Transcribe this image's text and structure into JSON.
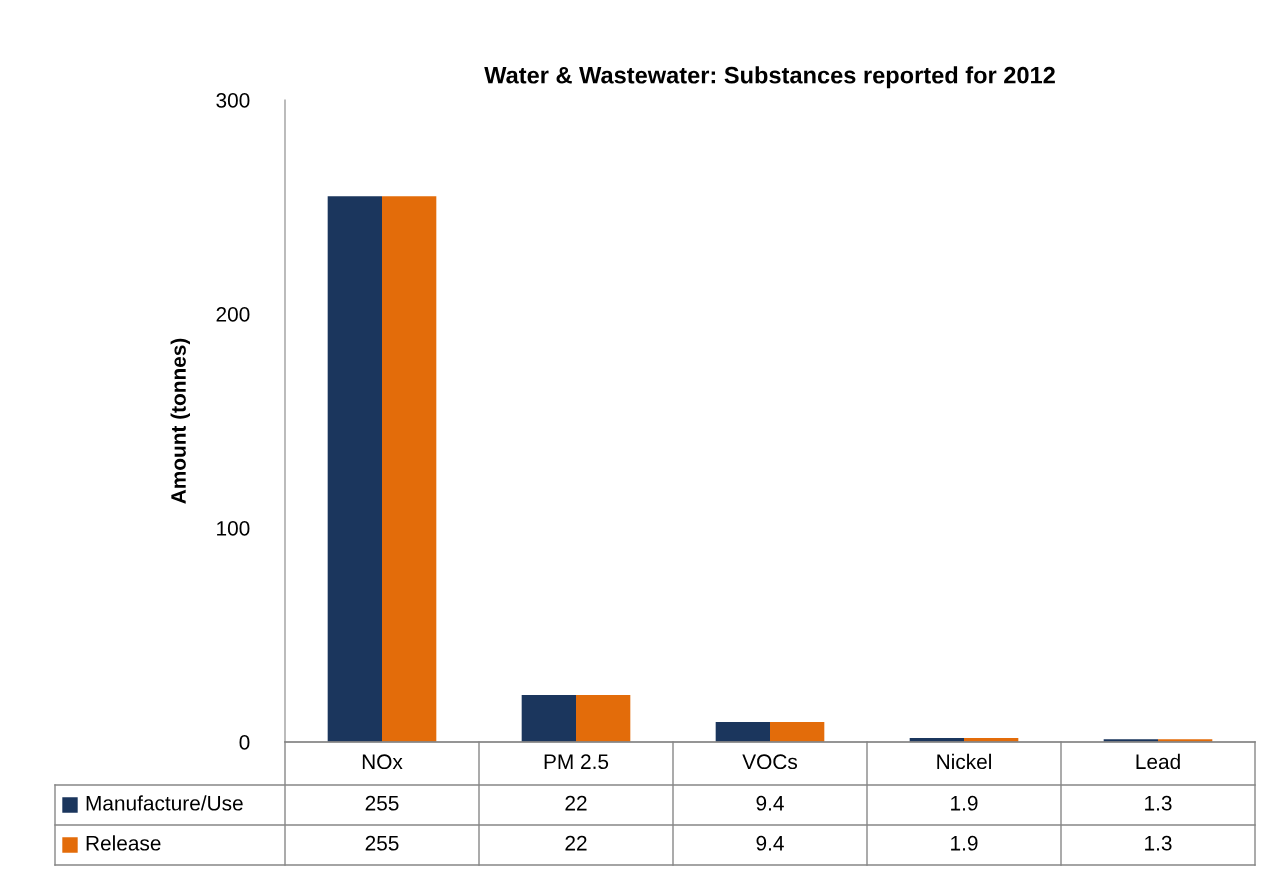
{
  "chart_data": {
    "type": "bar",
    "title": "Water & Wastewater: Substances reported for 2012",
    "ylabel": "Amount (tonnes)",
    "categories": [
      "NOx",
      "PM 2.5",
      "VOCs",
      "Nickel",
      "Lead"
    ],
    "series": [
      {
        "name": "Manufacture/Use",
        "color": "#1b365d",
        "values": [
          255,
          22,
          9.4,
          1.9,
          1.3
        ]
      },
      {
        "name": "Release",
        "color": "#e36c0a",
        "values": [
          255,
          22,
          9.4,
          1.9,
          1.3
        ]
      }
    ],
    "ylim": [
      0,
      300
    ],
    "yticks": [
      0,
      100,
      200,
      300
    ],
    "grid": false,
    "legend": "bottom",
    "data_labels": true
  }
}
